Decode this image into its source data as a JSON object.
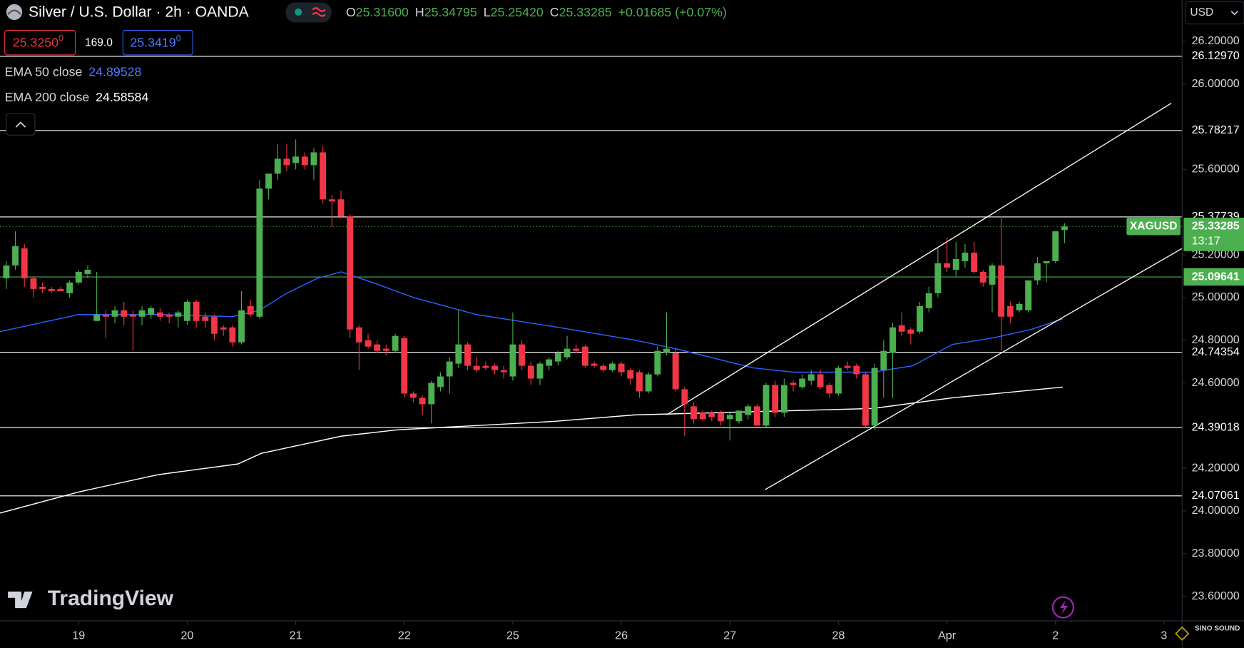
{
  "header": {
    "title": "Silver / U.S. Dollar · 2h · OANDA",
    "ohlc": [
      {
        "key": "O",
        "value": "25.31600"
      },
      {
        "key": "H",
        "value": "25.34795"
      },
      {
        "key": "L",
        "value": "25.25420"
      },
      {
        "key": "C",
        "value": "25.33285"
      }
    ],
    "change": "+0.01685 (+0.07%)",
    "bid": "25.3250",
    "bid_pip": "0",
    "spread": "169.0",
    "ask": "25.3419",
    "ask_pip": "0",
    "currency": "USD",
    "logo": "TradingView",
    "watermark": "SINO SOUND"
  },
  "chart_data": {
    "type": "candlestick",
    "series": [
      {
        "name": "XAGUSD",
        "up_color": "#4caf50",
        "down_color": "#f23645",
        "open": [
          25.09,
          25.15,
          25.23,
          25.09,
          25.05,
          25.04,
          25.04,
          25.02,
          25.07,
          25.11,
          24.89,
          24.92,
          24.91,
          24.94,
          24.92,
          24.91,
          24.92,
          24.93,
          24.92,
          24.91,
          24.89,
          24.98,
          24.91,
          24.91,
          24.86,
          24.86,
          24.79,
          24.96,
          24.91,
          25.51,
          25.58,
          25.65,
          25.63,
          25.66,
          25.62,
          25.68,
          25.46,
          25.46,
          25.38,
          24.86,
          24.8,
          24.78,
          24.76,
          24.75,
          24.81,
          24.55,
          24.53,
          24.5,
          24.58,
          24.63,
          24.69,
          24.78,
          24.68,
          24.68,
          24.68,
          24.66,
          24.63,
          24.78,
          24.68,
          24.62,
          24.68,
          24.7,
          24.72,
          24.76,
          24.77,
          24.69,
          24.68,
          24.66,
          24.69,
          24.66,
          24.65,
          24.56,
          24.64,
          24.74,
          24.74,
          24.57,
          24.49,
          24.46,
          24.46,
          24.46,
          24.43,
          24.42,
          24.45,
          24.49,
          24.4,
          24.59,
          24.46,
          24.6,
          24.58,
          24.61,
          24.64,
          24.59,
          24.55,
          24.68,
          24.68,
          24.64,
          24.4,
          24.66,
          24.74,
          24.87,
          24.85,
          24.84,
          24.95,
          25.02,
          25.16,
          25.13,
          25.17,
          25.21,
          25.12,
          25.06,
          25.15,
          24.96,
          24.94,
          24.94,
          25.08,
          25.16,
          25.17,
          25.316
        ],
        "high": [
          25.17,
          25.31,
          25.25,
          25.1,
          25.07,
          25.05,
          25.05,
          25.08,
          25.13,
          25.15,
          25.12,
          24.94,
          24.96,
          24.98,
          24.94,
          24.96,
          24.96,
          24.95,
          24.93,
          24.94,
          24.99,
          24.99,
          24.93,
          24.92,
          24.87,
          24.87,
          25.03,
          24.99,
          25.55,
          25.58,
          25.72,
          25.72,
          25.74,
          25.68,
          25.7,
          25.71,
          25.48,
          25.5,
          25.39,
          24.87,
          24.83,
          24.8,
          24.78,
          24.83,
          24.82,
          24.56,
          24.54,
          24.61,
          24.65,
          24.72,
          24.94,
          24.79,
          24.72,
          24.7,
          24.69,
          24.68,
          24.93,
          24.8,
          24.7,
          24.7,
          24.72,
          24.75,
          24.82,
          24.78,
          24.78,
          24.7,
          24.69,
          24.7,
          24.7,
          24.67,
          24.66,
          24.65,
          24.77,
          24.93,
          24.76,
          24.58,
          24.51,
          24.47,
          24.47,
          24.47,
          24.46,
          24.47,
          24.5,
          24.5,
          24.6,
          24.61,
          24.62,
          24.61,
          24.64,
          24.66,
          24.66,
          24.6,
          24.68,
          24.7,
          24.69,
          24.65,
          24.69,
          24.8,
          24.88,
          24.93,
          24.86,
          24.98,
          25.05,
          25.23,
          25.28,
          25.26,
          25.25,
          25.26,
          25.13,
          25.16,
          25.38,
          24.98,
          24.98,
          25.08,
          25.19,
          25.17,
          25.31,
          25.34795
        ],
        "low": [
          25.04,
          25.13,
          25.05,
          25.0,
          25.02,
          25.02,
          25.03,
          25.0,
          25.06,
          25.09,
          24.89,
          24.81,
          24.88,
          24.87,
          24.75,
          24.87,
          24.9,
          24.89,
          24.88,
          24.86,
          24.87,
          24.86,
          24.86,
          24.8,
          24.82,
          24.77,
          24.78,
          24.91,
          24.9,
          25.46,
          25.55,
          25.59,
          25.6,
          25.6,
          25.55,
          25.44,
          25.33,
          25.37,
          24.81,
          24.66,
          24.76,
          24.74,
          24.73,
          24.74,
          24.53,
          24.51,
          24.45,
          24.41,
          24.56,
          24.55,
          24.67,
          24.66,
          24.65,
          24.66,
          24.64,
          24.62,
          24.61,
          24.66,
          24.59,
          24.59,
          24.66,
          24.68,
          24.71,
          24.74,
          24.67,
          24.67,
          24.65,
          24.65,
          24.63,
          24.59,
          24.53,
          24.55,
          24.63,
          24.73,
          24.56,
          24.35,
          24.41,
          24.42,
          24.42,
          24.4,
          24.33,
          24.41,
          24.43,
          24.4,
          24.39,
          24.44,
          24.44,
          24.56,
          24.57,
          24.59,
          24.57,
          24.53,
          24.54,
          24.66,
          24.62,
          24.39,
          24.38,
          24.53,
          24.53,
          24.82,
          24.78,
          24.83,
          24.93,
          25.0,
          25.12,
          25.1,
          25.14,
          25.11,
          25.05,
          24.93,
          24.75,
          24.88,
          24.93,
          24.93,
          25.06,
          25.07,
          25.16,
          25.2542
        ],
        "close": [
          25.15,
          25.24,
          25.09,
          25.04,
          25.04,
          25.03,
          25.03,
          25.07,
          25.12,
          25.13,
          24.92,
          24.91,
          24.94,
          24.91,
          24.91,
          24.94,
          24.95,
          24.91,
          24.91,
          24.93,
          24.98,
          24.89,
          24.89,
          24.83,
          24.85,
          24.79,
          24.94,
          24.92,
          25.51,
          25.58,
          25.65,
          25.62,
          25.66,
          25.62,
          25.68,
          25.46,
          25.45,
          25.38,
          24.85,
          24.79,
          24.77,
          24.75,
          24.75,
          24.82,
          24.55,
          24.53,
          24.5,
          24.6,
          24.63,
          24.7,
          24.78,
          24.68,
          24.66,
          24.67,
          24.66,
          24.65,
          24.78,
          24.68,
          24.62,
          24.69,
          24.71,
          24.74,
          24.76,
          24.75,
          24.68,
          24.68,
          24.66,
          24.69,
          24.65,
          24.62,
          24.56,
          24.64,
          24.75,
          24.76,
          24.57,
          24.5,
          24.43,
          24.43,
          24.44,
          24.42,
          24.45,
          24.47,
          24.49,
          24.4,
          24.59,
          24.46,
          24.59,
          24.59,
          24.62,
          24.64,
          24.58,
          24.55,
          24.67,
          24.67,
          24.64,
          24.4,
          24.67,
          24.75,
          24.86,
          24.84,
          24.83,
          24.96,
          25.02,
          25.16,
          25.14,
          25.18,
          25.21,
          25.12,
          25.07,
          25.15,
          24.91,
          24.91,
          24.97,
          25.08,
          25.16,
          25.17,
          25.31,
          25.33285
        ]
      }
    ],
    "overlays": [
      {
        "name": "EMA 50 close",
        "last_value": 24.89528,
        "color": "#2962ff",
        "x": [
          -0.7,
          8,
          17,
          25,
          28,
          31,
          34.4,
          37,
          40.5,
          45,
          52,
          61,
          69.5,
          74,
          82.6,
          87,
          91.4,
          95.8,
          100.2,
          104.6,
          109,
          113.3,
          116.8
        ],
        "values": [
          24.84,
          24.92,
          24.92,
          24.91,
          24.94,
          25.02,
          25.09,
          25.12,
          25.07,
          25.0,
          24.92,
          24.86,
          24.8,
          24.76,
          24.67,
          24.65,
          24.65,
          24.65,
          24.68,
          24.78,
          24.81,
          24.85,
          24.9
        ]
      },
      {
        "name": "EMA 200 close",
        "last_value": 24.58584,
        "color": "#ffffff",
        "x": [
          -0.7,
          8.1,
          16.8,
          25.6,
          28.2,
          37,
          43.2,
          52,
          60.7,
          69.5,
          78.2,
          87,
          95.8,
          104.6,
          116.8
        ],
        "values": [
          23.99,
          24.09,
          24.17,
          24.22,
          24.27,
          24.35,
          24.38,
          24.4,
          24.42,
          24.45,
          24.46,
          24.47,
          24.48,
          24.53,
          24.58
        ]
      }
    ],
    "h_lines": [
      {
        "value": 26.1297,
        "label": "26.12970",
        "color": "#ffffff"
      },
      {
        "value": 25.78217,
        "label": "25.78217",
        "color": "#ffffff"
      },
      {
        "value": 25.37739,
        "label": "25.37739",
        "color": "#ffffff"
      },
      {
        "value": 25.09641,
        "label": "25.09641",
        "color": "#4caf50"
      },
      {
        "value": 24.74354,
        "label": "24.74354",
        "color": "#ffffff"
      },
      {
        "value": 24.39018,
        "label": "24.39018",
        "color": "#ffffff"
      },
      {
        "value": 24.07061,
        "label": "24.07061",
        "color": "#ffffff"
      }
    ],
    "trend_lines": [
      {
        "x": [
          73,
          128.8
        ],
        "values": [
          24.45,
          25.91
        ],
        "color": "#ffffff"
      },
      {
        "x": [
          83.9,
          130
        ],
        "values": [
          24.1,
          25.23
        ],
        "color": "#ffffff"
      }
    ],
    "countdown": "13:17",
    "xlim": [
      -0.7,
      130
    ],
    "xticks": [
      {
        "value": 8,
        "label": "19"
      },
      {
        "value": 20,
        "label": "20"
      },
      {
        "value": 32,
        "label": "21"
      },
      {
        "value": 44,
        "label": "22"
      },
      {
        "value": 56,
        "label": "25"
      },
      {
        "value": 68,
        "label": "26"
      },
      {
        "value": 80,
        "label": "27"
      },
      {
        "value": 92,
        "label": "28"
      },
      {
        "value": 104,
        "label": "Apr"
      },
      {
        "value": 116,
        "label": "2"
      },
      {
        "value": 128,
        "label": "3"
      }
    ],
    "ylim": [
      23.485,
      26.393
    ],
    "yticks": [
      {
        "value": 26.2,
        "label": "26.20000"
      },
      {
        "value": 26.0,
        "label": "26.00000"
      },
      {
        "value": 25.6,
        "label": "25.60000"
      },
      {
        "value": 25.2,
        "label": "25.20000"
      },
      {
        "value": 25.0,
        "label": "25.00000"
      },
      {
        "value": 24.8,
        "label": "24.80000"
      },
      {
        "value": 24.6,
        "label": "24.60000"
      },
      {
        "value": 24.2,
        "label": "24.20000"
      },
      {
        "value": 24.0,
        "label": "24.00000"
      },
      {
        "value": 23.8,
        "label": "23.80000"
      },
      {
        "value": 23.6,
        "label": "23.60000"
      }
    ]
  }
}
